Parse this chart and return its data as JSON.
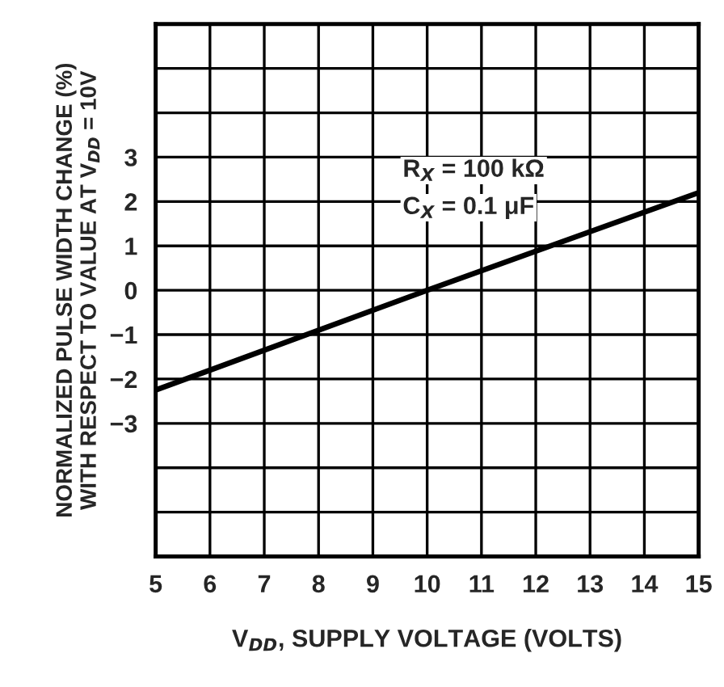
{
  "chart_data": {
    "type": "line",
    "xlabel": "V$_{DD}$, SUPPLY VOLTAGE (VOLTS)",
    "ylabel": "NORMALIZED PULSE WIDTH CHANGE (%)\nWITH RESPECT TO VALUE AT V$_{DD}$ = 10V",
    "x": [
      5,
      10,
      15
    ],
    "series": [
      {
        "color": "#000000",
        "values": [
          -2.25,
          0,
          2.2
        ]
      }
    ],
    "xlim": [
      5,
      15
    ],
    "xticks": [
      5,
      6,
      7,
      8,
      9,
      10,
      11,
      12,
      13,
      14,
      15
    ],
    "ylim": [
      -6,
      6
    ],
    "yticks": [
      {
        "value": -6,
        "label": null
      },
      {
        "value": -5,
        "label": null
      },
      {
        "value": -4,
        "label": null
      },
      {
        "value": -3,
        "label": "−3"
      },
      {
        "value": -2,
        "label": "−2"
      },
      {
        "value": -1,
        "label": "−1"
      },
      0,
      1,
      2,
      3,
      {
        "value": 4,
        "label": null
      },
      {
        "value": 5,
        "label": null
      },
      {
        "value": 6,
        "label": null
      }
    ],
    "annotations": [
      "R$_{X}$ = 100 kΩ",
      "C$_{X}$ = 0.1 μF"
    ],
    "grid": true,
    "legend": false,
    "marker": "none",
    "line_style": "solid"
  }
}
